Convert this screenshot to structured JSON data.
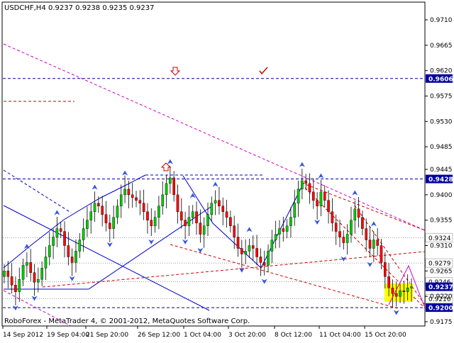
{
  "header": {
    "symbol_tf": "USDCHF,H4",
    "ohlc": "0.9237 0.9238 0.9235 0.9237"
  },
  "footer": {
    "copyright": "RoboForex - MetaTrader 4, © 2001-2012, MetaQuotes Software Corp."
  },
  "colors": {
    "background": "#ffffff",
    "bull_candle": "#00cc00",
    "bear_candle": "#ff0000",
    "trendline_blue": "#0000cc",
    "trendline_magenta": "#cc00cc",
    "trendline_red": "#cc0000",
    "level_highlight": "#0000a0",
    "target_box": "#ffff00",
    "fractal_arrow": "#3355dd"
  },
  "chart_data": {
    "type": "candlestick",
    "symbol": "USDCHF",
    "timeframe": "H4",
    "ylim": [
      0.9175,
      0.9735
    ],
    "price_axis_ticks": [
      "0.9710",
      "0.9665",
      "0.9620",
      "0.9575",
      "0.9530",
      "0.9485",
      "0.9445",
      "0.9400",
      "0.9355",
      "0.9310",
      "0.9265",
      "0.9220",
      "0.9175"
    ],
    "time_axis_ticks": [
      "14 Sep 2012",
      "19 Sep 04:00",
      "21 Sep 20:00",
      "26 Sep 12:00",
      "1 Oct 04:00",
      "3 Oct 20:00",
      "8 Oct 12:00",
      "11 Oct 04:00",
      "15 Oct 20:00"
    ],
    "highlighted_levels": [
      {
        "label": "0.9606",
        "value": 0.9606,
        "style": "dashed-blue",
        "highlight": true
      },
      {
        "label": "0.9428",
        "value": 0.9428,
        "style": "dashed-blue",
        "highlight": true
      },
      {
        "label": "0.9324",
        "value": 0.9324,
        "style": "dotted-gray",
        "highlight": false
      },
      {
        "label": "0.9279",
        "value": 0.9279,
        "style": "dotted-gray",
        "highlight": false
      },
      {
        "label": "0.9246",
        "value": 0.9246,
        "style": "dotted-gray",
        "highlight": false
      },
      {
        "label": "0.9237",
        "value": 0.9237,
        "style": "current",
        "highlight": true
      },
      {
        "label": "0.9216",
        "value": 0.9216,
        "style": "dotted-gray",
        "highlight": false
      },
      {
        "label": "0.9200",
        "value": 0.92,
        "style": "dashed-blue",
        "highlight": true
      }
    ],
    "close_series": [
      0.9265,
      0.9255,
      0.924,
      0.9228,
      0.925,
      0.9275,
      0.928,
      0.9262,
      0.9245,
      0.925,
      0.927,
      0.929,
      0.931,
      0.9325,
      0.934,
      0.9335,
      0.931,
      0.929,
      0.928,
      0.93,
      0.932,
      0.934,
      0.9355,
      0.937,
      0.9385,
      0.938,
      0.9365,
      0.935,
      0.934,
      0.936,
      0.938,
      0.94,
      0.941,
      0.94,
      0.9395,
      0.939,
      0.9385,
      0.937,
      0.9355,
      0.9345,
      0.936,
      0.938,
      0.94,
      0.942,
      0.943,
      0.94,
      0.937,
      0.9355,
      0.9345,
      0.936,
      0.937,
      0.935,
      0.933,
      0.9345,
      0.9365,
      0.9385,
      0.939,
      0.938,
      0.937,
      0.936,
      0.9345,
      0.9325,
      0.9305,
      0.9295,
      0.93,
      0.931,
      0.9305,
      0.929,
      0.928,
      0.9275,
      0.93,
      0.932,
      0.933,
      0.934,
      0.9335,
      0.9345,
      0.936,
      0.9385,
      0.941,
      0.9425,
      0.942,
      0.9405,
      0.939,
      0.938,
      0.9405,
      0.939,
      0.937,
      0.935,
      0.9335,
      0.9325,
      0.9315,
      0.933,
      0.9355,
      0.9375,
      0.936,
      0.934,
      0.932,
      0.9305,
      0.932,
      0.931,
      0.928,
      0.9255,
      0.9235,
      0.9225,
      0.922,
      0.923,
      0.9228,
      0.9235,
      0.9237
    ]
  }
}
